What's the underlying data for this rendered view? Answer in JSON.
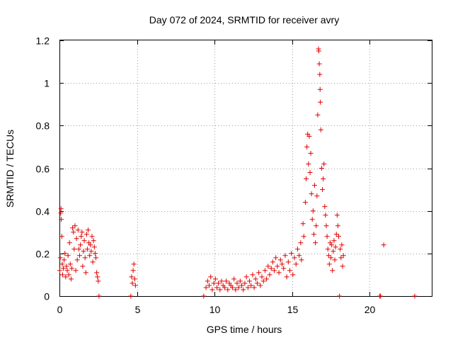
{
  "chart_data": {
    "type": "scatter",
    "title": "Day 072 of 2024, SRMTID for receiver avry",
    "xlabel": "GPS time / hours",
    "ylabel": "SRMTID / TECUs",
    "xlim": [
      0,
      24
    ],
    "ylim": [
      0,
      1.2
    ],
    "xticks": [
      0,
      5,
      10,
      15,
      20
    ],
    "yticks": [
      0,
      0.2,
      0.4,
      0.6,
      0.8,
      1,
      1.2
    ],
    "xtick_labels": [
      "0",
      "5",
      "10",
      "15",
      "20"
    ],
    "ytick_labels": [
      "0",
      "0.2",
      "0.4",
      "0.6",
      "0.8",
      "1",
      "1.2"
    ],
    "grid": true,
    "marker": "+",
    "color": "#e00000",
    "series": [
      {
        "name": "avry",
        "points": [
          [
            0.02,
            0.12
          ],
          [
            0.05,
            0.18
          ],
          [
            0.08,
            0.39
          ],
          [
            0.1,
            0.41
          ],
          [
            0.12,
            0.36
          ],
          [
            0.15,
            0.28
          ],
          [
            0.18,
            0.15
          ],
          [
            0.2,
            0.1
          ],
          [
            0.25,
            0.13
          ],
          [
            0.3,
            0.17
          ],
          [
            0.35,
            0.2
          ],
          [
            0.4,
            0.09
          ],
          [
            0.45,
            0.14
          ],
          [
            0.5,
            0.12
          ],
          [
            0.55,
            0.19
          ],
          [
            0.6,
            0.1
          ],
          [
            0.65,
            0.25
          ],
          [
            0.7,
            0.15
          ],
          [
            0.75,
            0.08
          ],
          [
            0.8,
            0.13
          ],
          [
            0.85,
            0.32
          ],
          [
            0.9,
            0.3
          ],
          [
            0.95,
            0.22
          ],
          [
            1.0,
            0.33
          ],
          [
            1.05,
            0.12
          ],
          [
            1.1,
            0.27
          ],
          [
            1.15,
            0.17
          ],
          [
            1.2,
            0.31
          ],
          [
            1.25,
            0.22
          ],
          [
            1.3,
            0.19
          ],
          [
            1.35,
            0.24
          ],
          [
            1.4,
            0.28
          ],
          [
            1.45,
            0.3
          ],
          [
            1.5,
            0.14
          ],
          [
            1.55,
            0.21
          ],
          [
            1.6,
            0.26
          ],
          [
            1.65,
            0.18
          ],
          [
            1.7,
            0.11
          ],
          [
            1.75,
            0.29
          ],
          [
            1.8,
            0.22
          ],
          [
            1.85,
            0.31
          ],
          [
            1.9,
            0.25
          ],
          [
            1.95,
            0.19
          ],
          [
            2.0,
            0.24
          ],
          [
            2.05,
            0.21
          ],
          [
            2.1,
            0.28
          ],
          [
            2.15,
            0.16
          ],
          [
            2.2,
            0.26
          ],
          [
            2.25,
            0.23
          ],
          [
            2.3,
            0.2
          ],
          [
            2.35,
            0.18
          ],
          [
            2.4,
            0.11
          ],
          [
            2.45,
            0.09
          ],
          [
            2.5,
            0.07
          ],
          [
            2.55,
            0.0
          ],
          [
            4.6,
            0.0
          ],
          [
            4.65,
            0.09
          ],
          [
            4.7,
            0.06
          ],
          [
            4.75,
            0.12
          ],
          [
            4.8,
            0.15
          ],
          [
            4.85,
            0.08
          ],
          [
            4.9,
            0.05
          ],
          [
            9.3,
            0.0
          ],
          [
            9.45,
            0.04
          ],
          [
            9.55,
            0.07
          ],
          [
            9.65,
            0.05
          ],
          [
            9.75,
            0.09
          ],
          [
            9.85,
            0.03
          ],
          [
            9.95,
            0.06
          ],
          [
            10.05,
            0.08
          ],
          [
            10.15,
            0.04
          ],
          [
            10.25,
            0.06
          ],
          [
            10.35,
            0.03
          ],
          [
            10.45,
            0.07
          ],
          [
            10.55,
            0.05
          ],
          [
            10.65,
            0.04
          ],
          [
            10.75,
            0.07
          ],
          [
            10.85,
            0.03
          ],
          [
            10.95,
            0.06
          ],
          [
            11.05,
            0.05
          ],
          [
            11.15,
            0.04
          ],
          [
            11.25,
            0.08
          ],
          [
            11.35,
            0.03
          ],
          [
            11.45,
            0.06
          ],
          [
            11.55,
            0.04
          ],
          [
            11.65,
            0.07
          ],
          [
            11.75,
            0.05
          ],
          [
            11.85,
            0.03
          ],
          [
            11.95,
            0.06
          ],
          [
            12.05,
            0.09
          ],
          [
            12.15,
            0.04
          ],
          [
            12.25,
            0.07
          ],
          [
            12.35,
            0.05
          ],
          [
            12.45,
            0.1
          ],
          [
            12.55,
            0.04
          ],
          [
            12.65,
            0.08
          ],
          [
            12.75,
            0.06
          ],
          [
            12.85,
            0.11
          ],
          [
            12.95,
            0.05
          ],
          [
            13.05,
            0.09
          ],
          [
            13.15,
            0.07
          ],
          [
            13.25,
            0.12
          ],
          [
            13.35,
            0.08
          ],
          [
            13.45,
            0.14
          ],
          [
            13.55,
            0.1
          ],
          [
            13.65,
            0.13
          ],
          [
            13.75,
            0.16
          ],
          [
            13.85,
            0.12
          ],
          [
            13.95,
            0.18
          ],
          [
            14.05,
            0.14
          ],
          [
            14.15,
            0.11
          ],
          [
            14.25,
            0.17
          ],
          [
            14.35,
            0.15
          ],
          [
            14.45,
            0.13
          ],
          [
            14.55,
            0.19
          ],
          [
            14.65,
            0.09
          ],
          [
            14.75,
            0.16
          ],
          [
            14.85,
            0.12
          ],
          [
            14.95,
            0.2
          ],
          [
            15.05,
            0.1
          ],
          [
            15.15,
            0.18
          ],
          [
            15.25,
            0.15
          ],
          [
            15.35,
            0.22
          ],
          [
            15.45,
            0.19
          ],
          [
            15.55,
            0.25
          ],
          [
            15.6,
            0.17
          ],
          [
            15.7,
            0.34
          ],
          [
            15.75,
            0.28
          ],
          [
            15.85,
            0.44
          ],
          [
            15.9,
            0.55
          ],
          [
            15.95,
            0.7
          ],
          [
            16.0,
            0.76
          ],
          [
            16.05,
            0.62
          ],
          [
            16.1,
            0.75
          ],
          [
            16.15,
            0.58
          ],
          [
            16.2,
            0.67
          ],
          [
            16.25,
            0.48
          ],
          [
            16.3,
            0.36
          ],
          [
            16.35,
            0.4
          ],
          [
            16.4,
            0.29
          ],
          [
            16.45,
            0.52
          ],
          [
            16.5,
            0.25
          ],
          [
            16.55,
            0.33
          ],
          [
            16.6,
            0.47
          ],
          [
            16.65,
            0.85
          ],
          [
            16.7,
            1.16
          ],
          [
            16.72,
            1.15
          ],
          [
            16.75,
            1.09
          ],
          [
            16.78,
            1.04
          ],
          [
            16.8,
            0.97
          ],
          [
            16.82,
            0.91
          ],
          [
            16.85,
            0.78
          ],
          [
            16.9,
            0.6
          ],
          [
            16.95,
            0.5
          ],
          [
            17.0,
            0.55
          ],
          [
            17.05,
            0.62
          ],
          [
            17.1,
            0.42
          ],
          [
            17.15,
            0.38
          ],
          [
            17.2,
            0.33
          ],
          [
            17.25,
            0.28
          ],
          [
            17.3,
            0.22
          ],
          [
            17.35,
            0.19
          ],
          [
            17.4,
            0.15
          ],
          [
            17.45,
            0.25
          ],
          [
            17.5,
            0.18
          ],
          [
            17.55,
            0.24
          ],
          [
            17.6,
            0.12
          ],
          [
            17.65,
            0.21
          ],
          [
            17.7,
            0.26
          ],
          [
            17.75,
            0.17
          ],
          [
            17.8,
            0.23
          ],
          [
            17.85,
            0.29
          ],
          [
            17.9,
            0.38
          ],
          [
            17.95,
            0.33
          ],
          [
            18.0,
            0.28
          ],
          [
            18.05,
            0.0
          ],
          [
            18.1,
            0.22
          ],
          [
            18.15,
            0.18
          ],
          [
            18.2,
            0.24
          ],
          [
            18.25,
            0.14
          ],
          [
            18.3,
            0.19
          ],
          [
            20.65,
            0.0
          ],
          [
            20.7,
            0.0
          ],
          [
            20.9,
            0.24
          ],
          [
            22.9,
            0.0
          ]
        ]
      }
    ]
  }
}
